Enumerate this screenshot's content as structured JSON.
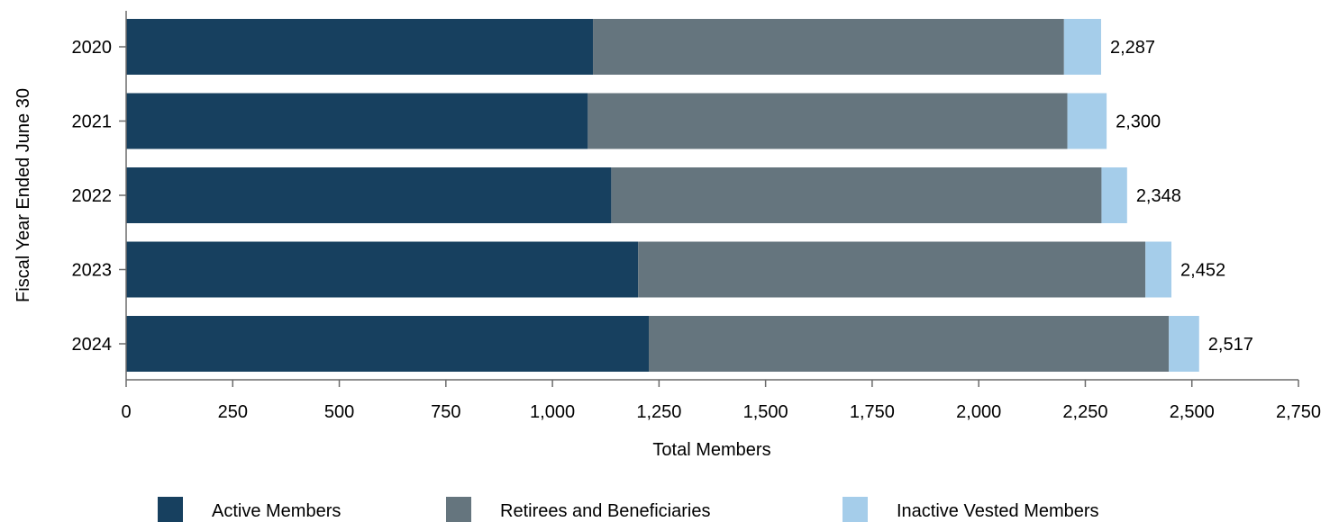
{
  "chart_data": {
    "type": "bar",
    "orientation": "horizontal",
    "stacked": true,
    "categories": [
      "2020",
      "2021",
      "2022",
      "2023",
      "2024"
    ],
    "series": [
      {
        "name": "Active Members",
        "color": "#17405f",
        "values": [
          1095,
          1083,
          1138,
          1201,
          1226
        ]
      },
      {
        "name": "Retirees and Beneficiaries",
        "color": "#65757e",
        "values": [
          1105,
          1125,
          1150,
          1190,
          1220
        ]
      },
      {
        "name": "Inactive Vested Members",
        "color": "#a5cdea",
        "values": [
          87,
          92,
          60,
          61,
          71
        ]
      }
    ],
    "totals": [
      "2,287",
      "2,300",
      "2,348",
      "2,452",
      "2,517"
    ],
    "xlabel": "Total Members",
    "ylabel": "Fiscal Year Ended June 30",
    "xlim": [
      0,
      2750
    ],
    "xticks": [
      0,
      250,
      500,
      750,
      1000,
      1250,
      1500,
      1750,
      2000,
      2250,
      2500,
      2750
    ],
    "xtick_labels": [
      "0",
      "250",
      "500",
      "750",
      "1,000",
      "1,250",
      "1,500",
      "1,750",
      "2,000",
      "2,250",
      "2,500",
      "2,750"
    ],
    "grid": false,
    "legend_position": "bottom"
  }
}
